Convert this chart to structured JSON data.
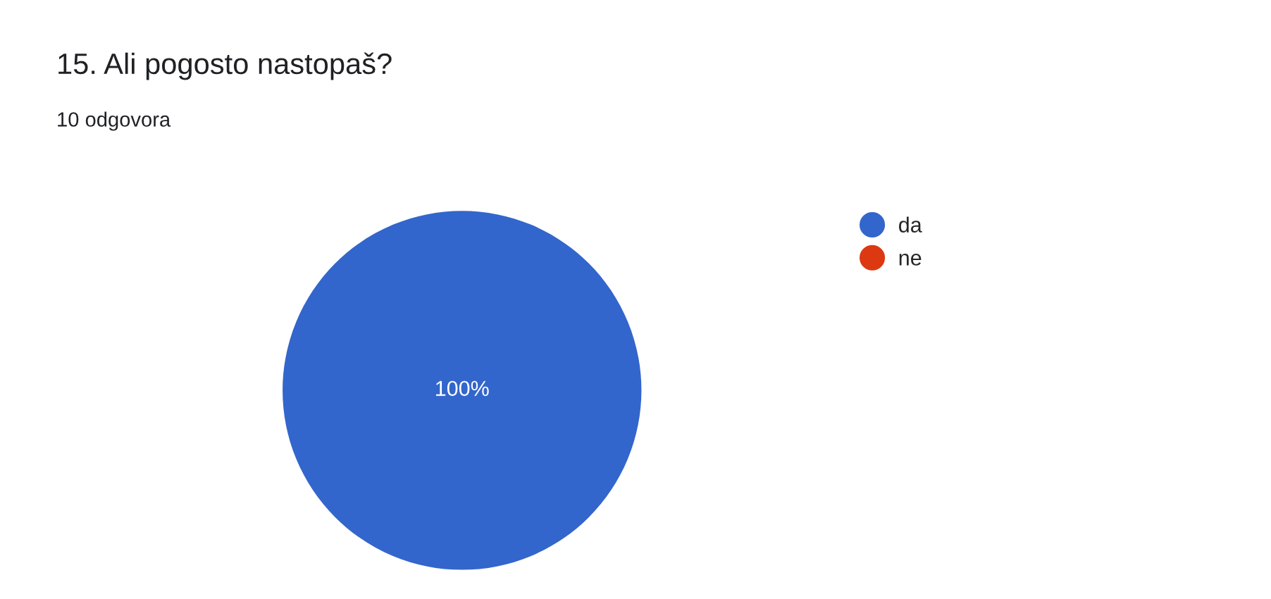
{
  "chart_data": {
    "type": "pie",
    "title": "15. Ali pogosto nastopaš?",
    "subtitle": "10 odgovora",
    "categories": [
      "da",
      "ne"
    ],
    "values": [
      100,
      0
    ],
    "colors": [
      "#3366cc",
      "#dc3912"
    ],
    "value_labels": [
      "100%",
      null
    ],
    "legend": "right"
  }
}
